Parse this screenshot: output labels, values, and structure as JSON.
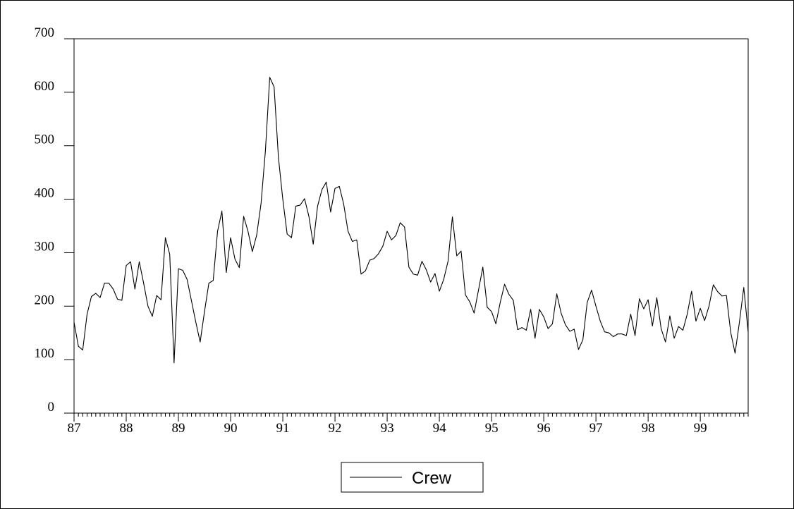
{
  "chart_data": {
    "type": "line",
    "title": "",
    "xlabel": "",
    "ylabel": "",
    "xlim": [
      87,
      99.917
    ],
    "ylim": [
      0,
      700
    ],
    "yticks": [
      0,
      100,
      200,
      300,
      400,
      500,
      600,
      700
    ],
    "xticks": [
      87,
      88,
      89,
      90,
      91,
      92,
      93,
      94,
      95,
      96,
      97,
      98,
      99
    ],
    "xtick_labels": [
      "87",
      "88",
      "89",
      "90",
      "91",
      "92",
      "93",
      "94",
      "95",
      "96",
      "97",
      "98",
      "99"
    ],
    "ytick_labels": [
      "0",
      "100",
      "200",
      "300",
      "400",
      "500",
      "600",
      "700"
    ],
    "grid": false,
    "legend_position": "bottom-center",
    "colors": {
      "line": "#000000",
      "axes": "#000000",
      "background": "#ffffff"
    },
    "series": [
      {
        "name": "Crew",
        "x_start": 87,
        "x_step": 0.08333,
        "values": [
          170,
          125,
          118,
          185,
          218,
          224,
          216,
          243,
          243,
          232,
          213,
          211,
          276,
          283,
          232,
          283,
          243,
          200,
          181,
          220,
          212,
          328,
          297,
          94,
          270,
          267,
          250,
          210,
          170,
          133,
          190,
          243,
          248,
          340,
          378,
          263,
          328,
          288,
          272,
          368,
          340,
          302,
          333,
          392,
          490,
          628,
          610,
          478,
          400,
          335,
          328,
          387,
          389,
          401,
          368,
          316,
          387,
          418,
          432,
          376,
          420,
          424,
          391,
          340,
          321,
          324,
          260,
          266,
          286,
          289,
          298,
          312,
          340,
          324,
          332,
          356,
          348,
          273,
          260,
          258,
          284,
          268,
          245,
          261,
          228,
          250,
          284,
          367,
          294,
          303,
          221,
          208,
          187,
          230,
          273,
          198,
          190,
          167,
          207,
          241,
          222,
          211,
          156,
          160,
          155,
          194,
          140,
          194,
          180,
          158,
          167,
          223,
          187,
          165,
          153,
          157,
          119,
          137,
          207,
          230,
          200,
          172,
          152,
          150,
          143,
          148,
          148,
          145,
          185,
          145,
          214,
          195,
          212,
          163,
          216,
          158,
          133,
          182,
          140,
          162,
          155,
          185,
          228,
          172,
          196,
          173,
          200,
          240,
          227,
          219,
          220,
          151,
          112,
          170,
          235,
          152
        ]
      }
    ]
  }
}
